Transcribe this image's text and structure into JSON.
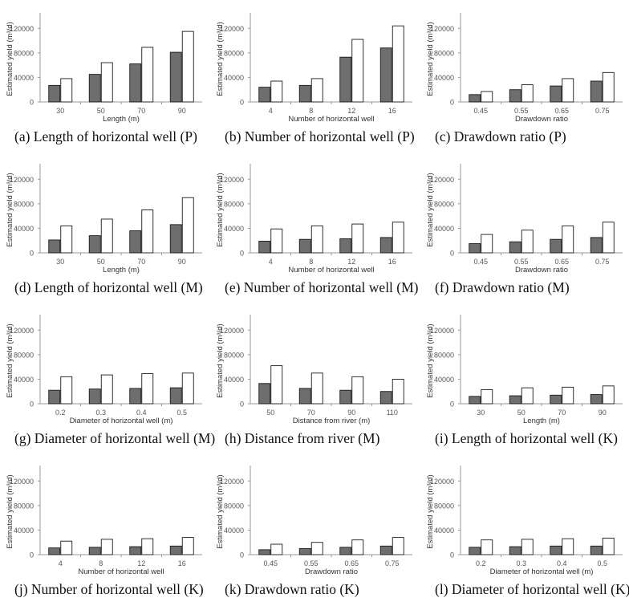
{
  "style": {
    "dark_bar": "#6e6e6e",
    "light_bar": "#ffffff",
    "bar_stroke": "#1a1a1a",
    "axis": "#9a9a9a",
    "tick_text": "#555555"
  },
  "ylabel": "Estimated yield (m³/d)",
  "yticks": [
    "0",
    "40000",
    "80000",
    "120000"
  ],
  "ylim": [
    0,
    140000
  ],
  "chart_data": [
    {
      "id": "a",
      "type": "bar",
      "caption": "(a) Length of horizontal well (P)",
      "xlabel": "Length (m)",
      "categories": [
        "30",
        "50",
        "70",
        "90"
      ],
      "series": [
        {
          "name": "dark",
          "values": [
            27000,
            45000,
            62000,
            81000
          ]
        },
        {
          "name": "light",
          "values": [
            38000,
            64000,
            89000,
            115000
          ]
        }
      ]
    },
    {
      "id": "b",
      "type": "bar",
      "caption": "(b) Number of horizontal well (P)",
      "xlabel": "Number of horizontal well",
      "categories": [
        "4",
        "8",
        "12",
        "16"
      ],
      "series": [
        {
          "name": "dark",
          "values": [
            24000,
            27000,
            73000,
            88000
          ]
        },
        {
          "name": "light",
          "values": [
            34000,
            38000,
            102000,
            124000
          ]
        }
      ]
    },
    {
      "id": "c",
      "type": "bar",
      "caption": "(c) Drawdown ratio (P)",
      "xlabel": "Drawdown ratio",
      "categories": [
        "0.45",
        "0.55",
        "0.65",
        "0.75"
      ],
      "series": [
        {
          "name": "dark",
          "values": [
            12000,
            20000,
            26000,
            34000
          ]
        },
        {
          "name": "light",
          "values": [
            17000,
            28000,
            38000,
            48000
          ]
        }
      ]
    },
    {
      "id": "d",
      "type": "bar",
      "caption": "(d) Length of horizontal well (M)",
      "xlabel": "Length (m)",
      "categories": [
        "30",
        "50",
        "70",
        "90"
      ],
      "series": [
        {
          "name": "dark",
          "values": [
            21000,
            28000,
            36000,
            46000
          ]
        },
        {
          "name": "light",
          "values": [
            44000,
            55000,
            70000,
            90000
          ]
        }
      ]
    },
    {
      "id": "e",
      "type": "bar",
      "caption": "(e) Number of horizontal well (M)",
      "xlabel": "Number of horizontal well",
      "categories": [
        "4",
        "8",
        "12",
        "16"
      ],
      "series": [
        {
          "name": "dark",
          "values": [
            19000,
            22000,
            23000,
            25000
          ]
        },
        {
          "name": "light",
          "values": [
            39000,
            44000,
            47000,
            50000
          ]
        }
      ]
    },
    {
      "id": "f",
      "type": "bar",
      "caption": "(f) Drawdown ratio (M)",
      "xlabel": "Drawdown ratio",
      "categories": [
        "0.45",
        "0.55",
        "0.65",
        "0.75"
      ],
      "series": [
        {
          "name": "dark",
          "values": [
            15000,
            18000,
            22000,
            25000
          ]
        },
        {
          "name": "light",
          "values": [
            30000,
            37000,
            44000,
            50000
          ]
        }
      ]
    },
    {
      "id": "g",
      "type": "bar",
      "caption": "(g) Diameter of horizontal well (M)",
      "xlabel": "Diameter of horizontal well (m)",
      "categories": [
        "0.2",
        "0.3",
        "0.4",
        "0.5"
      ],
      "series": [
        {
          "name": "dark",
          "values": [
            22000,
            24000,
            25000,
            26000
          ]
        },
        {
          "name": "light",
          "values": [
            44000,
            47000,
            49000,
            50000
          ]
        }
      ]
    },
    {
      "id": "h",
      "type": "bar",
      "caption": "(h) Distance from river (M)",
      "xlabel": "Distance from river (m)",
      "categories": [
        "50",
        "70",
        "90",
        "110"
      ],
      "series": [
        {
          "name": "dark",
          "values": [
            33000,
            25000,
            22000,
            20000
          ]
        },
        {
          "name": "light",
          "values": [
            62000,
            50000,
            44000,
            40000
          ]
        }
      ]
    },
    {
      "id": "i",
      "type": "bar",
      "caption": "(i) Length of horizontal well (K)",
      "xlabel": "Length (m)",
      "categories": [
        "30",
        "50",
        "70",
        "90"
      ],
      "series": [
        {
          "name": "dark",
          "values": [
            12000,
            13000,
            14000,
            15000
          ]
        },
        {
          "name": "light",
          "values": [
            23000,
            26000,
            27000,
            29000
          ]
        }
      ]
    },
    {
      "id": "j",
      "type": "bar",
      "caption": "(j) Number of horizontal well (K)",
      "xlabel": "Number of horizontal well",
      "categories": [
        "4",
        "8",
        "12",
        "16"
      ],
      "series": [
        {
          "name": "dark",
          "values": [
            11000,
            12000,
            13000,
            14000
          ]
        },
        {
          "name": "light",
          "values": [
            22000,
            25000,
            26000,
            28000
          ]
        }
      ]
    },
    {
      "id": "k",
      "type": "bar",
      "caption": "(k) Drawdown ratio (K)",
      "xlabel": "Drawdown ratio",
      "categories": [
        "0.45",
        "0.55",
        "0.65",
        "0.75"
      ],
      "series": [
        {
          "name": "dark",
          "values": [
            8000,
            10000,
            12000,
            14000
          ]
        },
        {
          "name": "light",
          "values": [
            17000,
            20000,
            24000,
            28000
          ]
        }
      ]
    },
    {
      "id": "l",
      "type": "bar",
      "caption": "(l) Diameter of horizontal well (K)",
      "xlabel": "Diameter of horizontal well (m)",
      "categories": [
        "0.2",
        "0.3",
        "0.4",
        "0.5"
      ],
      "series": [
        {
          "name": "dark",
          "values": [
            12000,
            13000,
            14000,
            14000
          ]
        },
        {
          "name": "light",
          "values": [
            24000,
            25000,
            26000,
            27000
          ]
        }
      ]
    }
  ]
}
